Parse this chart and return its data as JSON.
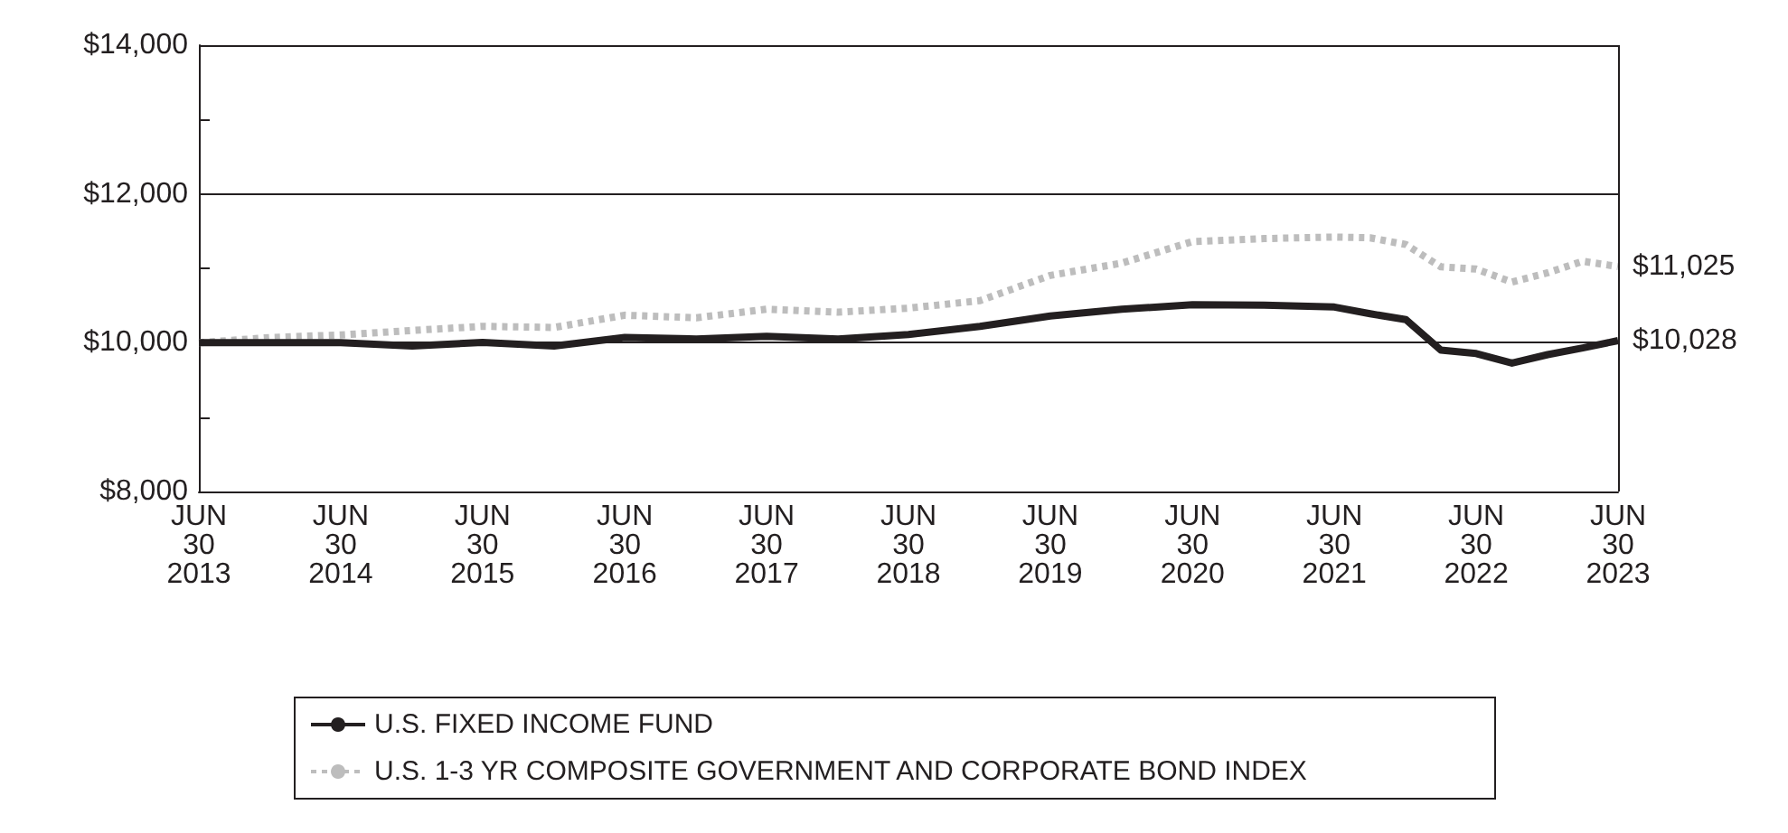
{
  "chart_data": {
    "type": "line",
    "xlim": [
      "2013-06-30",
      "2023-06-30"
    ],
    "xticks": [
      {
        "value": "2013-06-30",
        "label": "JUN\n30\n2013"
      },
      {
        "value": "2014-06-30",
        "label": "JUN\n30\n2014"
      },
      {
        "value": "2015-06-30",
        "label": "JUN\n30\n2015"
      },
      {
        "value": "2016-06-30",
        "label": "JUN\n30\n2016"
      },
      {
        "value": "2017-06-30",
        "label": "JUN\n30\n2017"
      },
      {
        "value": "2018-06-30",
        "label": "JUN\n30\n2018"
      },
      {
        "value": "2019-06-30",
        "label": "JUN\n30\n2019"
      },
      {
        "value": "2020-06-30",
        "label": "JUN\n30\n2020"
      },
      {
        "value": "2021-06-30",
        "label": "JUN\n30\n2021"
      },
      {
        "value": "2022-06-30",
        "label": "JUN\n30\n2022"
      },
      {
        "value": "2023-06-30",
        "label": "JUN\n30\n2023"
      }
    ],
    "ylim": [
      8000,
      14000
    ],
    "yticks": [
      {
        "value": 8000,
        "label": "$8,000"
      },
      {
        "value": 9000,
        "label": null
      },
      {
        "value": 10000,
        "label": "$10,000"
      },
      {
        "value": 11000,
        "label": null
      },
      {
        "value": 12000,
        "label": "$12,000"
      },
      {
        "value": 13000,
        "label": null
      },
      {
        "value": 14000,
        "label": "$14,000"
      }
    ],
    "grid": "y",
    "legend": "bottom",
    "marker": "none",
    "x": [
      "2013-06-30",
      "2013-12-31",
      "2014-06-30",
      "2014-12-31",
      "2015-06-30",
      "2015-12-31",
      "2016-06-30",
      "2016-12-31",
      "2017-06-30",
      "2017-12-31",
      "2018-06-30",
      "2018-12-31",
      "2019-06-30",
      "2019-12-31",
      "2020-06-30",
      "2020-12-31",
      "2021-06-30",
      "2021-09-30",
      "2021-12-31",
      "2022-03-31",
      "2022-06-30",
      "2022-09-30",
      "2022-12-31",
      "2023-03-31",
      "2023-06-30"
    ],
    "series": [
      {
        "name": "U.S. FIXED INCOME FUND",
        "color": "#231f20",
        "line_style": "solid",
        "values": [
          10000,
          10000,
          10000,
          9955,
          10005,
          9955,
          10070,
          10050,
          10085,
          10050,
          10110,
          10220,
          10360,
          10450,
          10510,
          10505,
          10480,
          10390,
          10310,
          9900,
          9855,
          9725,
          9840,
          9930,
          10028
        ]
      },
      {
        "name": "U.S. 1-3 YR COMPOSITE GOVERNMENT AND CORPORATE BOND INDEX",
        "color": "#bdbdbd",
        "line_style": "dotted",
        "values": [
          10000,
          10070,
          10105,
          10165,
          10220,
          10205,
          10370,
          10335,
          10450,
          10410,
          10465,
          10565,
          10905,
          11070,
          11360,
          11400,
          11420,
          11410,
          11320,
          11020,
          10990,
          10815,
          10940,
          11095,
          11025
        ]
      }
    ],
    "annotations": [
      {
        "text": "$11,025",
        "x": "2023-06-30",
        "y": 11025
      },
      {
        "text": "$10,028",
        "x": "2023-06-30",
        "y": 10028
      }
    ]
  }
}
